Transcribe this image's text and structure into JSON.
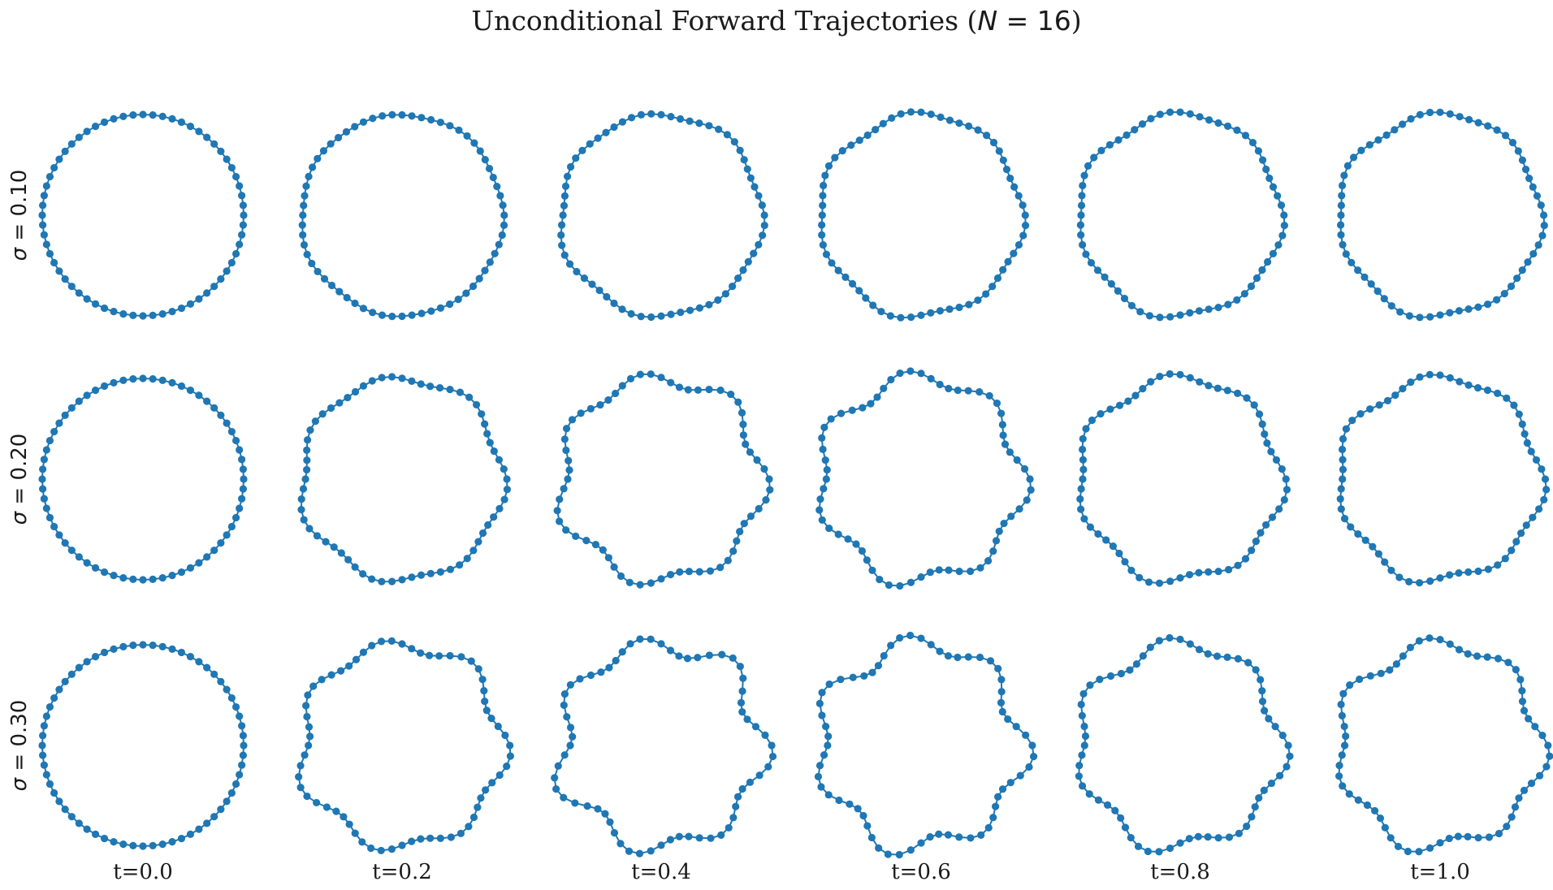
{
  "title": {
    "prefix": "Unconditional Forward Trajectories (",
    "var": "N",
    "eq": " = 16",
    "suffix": ")"
  },
  "chart_data": {
    "type": "scatter",
    "grid": false,
    "axes_visible": false,
    "marker_color": "#1f77b4",
    "line_color": "#1f77b4",
    "points_per_shape": 64,
    "rows": [
      {
        "symbol": "σ",
        "eq": " = 0.10"
      },
      {
        "symbol": "σ",
        "eq": " = 0.20"
      },
      {
        "symbol": "σ",
        "eq": " = 0.30"
      }
    ],
    "columns": [
      "t=0.0",
      "t=0.2",
      "t=0.4",
      "t=0.6",
      "t=0.8",
      "t=1.0"
    ],
    "shape_model": "r(θ) = 1 + a·cos(k·θ + φ) + b·cos(k2·θ + φ2)",
    "shapes": [
      [
        {
          "a": 0.0,
          "k": 0,
          "phi": 0.0,
          "b": 0.0,
          "k2": 0,
          "phi2": 0.0
        },
        {
          "a": 0.012,
          "k": 7,
          "phi": 0.3,
          "b": 0.008,
          "k2": 5,
          "phi2": 1.2
        },
        {
          "a": 0.025,
          "k": 7,
          "phi": 0.4,
          "b": 0.012,
          "k2": 5,
          "phi2": 1.4
        },
        {
          "a": 0.03,
          "k": 7,
          "phi": 0.5,
          "b": 0.015,
          "k2": 4,
          "phi2": 1.0
        },
        {
          "a": 0.028,
          "k": 7,
          "phi": 0.6,
          "b": 0.016,
          "k2": 4,
          "phi2": 1.1
        },
        {
          "a": 0.027,
          "k": 7,
          "phi": 0.6,
          "b": 0.018,
          "k2": 4,
          "phi2": 1.2
        }
      ],
      [
        {
          "a": 0.0,
          "k": 0,
          "phi": 0.0,
          "b": 0.0,
          "k2": 0,
          "phi2": 0.0
        },
        {
          "a": 0.04,
          "k": 7,
          "phi": 0.4,
          "b": 0.015,
          "k2": 5,
          "phi2": 1.3
        },
        {
          "a": 0.075,
          "k": 7,
          "phi": 0.4,
          "b": 0.02,
          "k2": 5,
          "phi2": 1.4
        },
        {
          "a": 0.08,
          "k": 7,
          "phi": 0.5,
          "b": 0.02,
          "k2": 4,
          "phi2": 1.0
        },
        {
          "a": 0.05,
          "k": 7,
          "phi": 0.6,
          "b": 0.02,
          "k2": 4,
          "phi2": 1.1
        },
        {
          "a": 0.045,
          "k": 7,
          "phi": 0.6,
          "b": 0.02,
          "k2": 4,
          "phi2": 1.2
        }
      ],
      [
        {
          "a": 0.0,
          "k": 0,
          "phi": 0.0,
          "b": 0.0,
          "k2": 0,
          "phi2": 0.0
        },
        {
          "a": 0.07,
          "k": 7,
          "phi": 0.4,
          "b": 0.02,
          "k2": 5,
          "phi2": 1.3
        },
        {
          "a": 0.1,
          "k": 7,
          "phi": 0.4,
          "b": 0.03,
          "k2": 5,
          "phi2": 1.4
        },
        {
          "a": 0.1,
          "k": 7,
          "phi": 0.5,
          "b": 0.03,
          "k2": 4,
          "phi2": 1.0
        },
        {
          "a": 0.075,
          "k": 7,
          "phi": 0.6,
          "b": 0.025,
          "k2": 4,
          "phi2": 1.1
        },
        {
          "a": 0.075,
          "k": 7,
          "phi": 0.6,
          "b": 0.025,
          "k2": 4,
          "phi2": 1.2
        }
      ]
    ]
  }
}
